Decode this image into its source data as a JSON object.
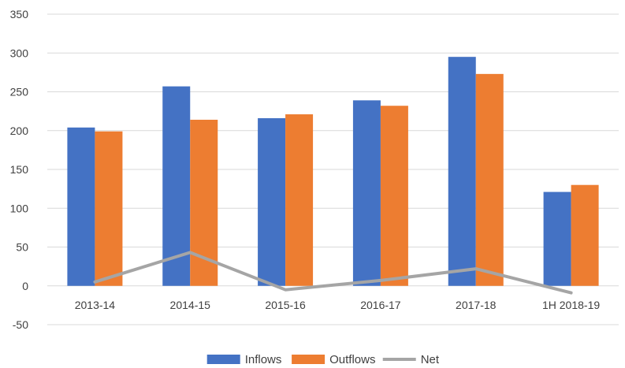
{
  "chart_data": {
    "type": "bar",
    "categories": [
      "2013-14",
      "2014-15",
      "2015-16",
      "2016-17",
      "2017-18",
      "1H 2018-19"
    ],
    "series": [
      {
        "name": "Inflows",
        "type": "bar",
        "color": "#4472c4",
        "values": [
          204,
          257,
          216,
          239,
          295,
          121
        ]
      },
      {
        "name": "Outflows",
        "type": "bar",
        "color": "#ed7d31",
        "values": [
          199,
          214,
          221,
          232,
          273,
          130
        ]
      },
      {
        "name": "Net",
        "type": "line",
        "color": "#a5a5a5",
        "values": [
          5,
          43,
          -5,
          7,
          22,
          -9
        ]
      }
    ],
    "ylim": [
      -50,
      350
    ],
    "yticks": [
      -50,
      0,
      50,
      100,
      150,
      200,
      250,
      300,
      350
    ],
    "grid": true,
    "legend_position": "bottom",
    "title": "",
    "xlabel": "",
    "ylabel": ""
  }
}
